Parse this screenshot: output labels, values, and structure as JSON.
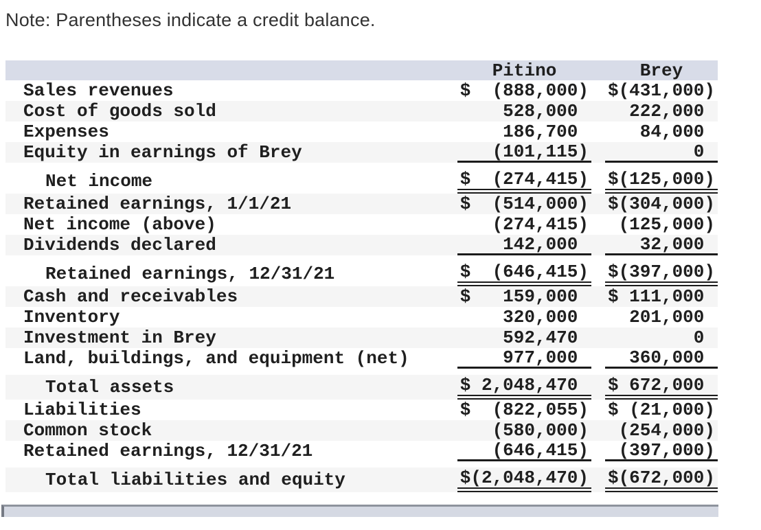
{
  "note": "Note: Parentheses indicate a credit balance.",
  "colors": {
    "header_bg": "#d8dce8",
    "row_shade_bg": "#f5f5f5",
    "rule_line": "#1b1b1b",
    "text": "#1f1f1f",
    "note_text": "#333333",
    "scrollbar_track": "#d5d9e3",
    "scrollbar_border": "#8e939d",
    "scrollbar_edge": "#757a84"
  },
  "table": {
    "columns": [
      "Pitino",
      "Brey"
    ],
    "rows": [
      {
        "label": "Sales revenues",
        "pitino": "$  (888,000)",
        "brey": "$(431,000)"
      },
      {
        "label": "Cost of goods sold",
        "pitino": "528,000 ",
        "brey": "222,000 "
      },
      {
        "label": "Expenses",
        "pitino": "186,700 ",
        "brey": "84,000 "
      },
      {
        "label": "Equity in earnings of Brey",
        "pitino": "(101,115)",
        "brey": "0 "
      },
      {
        "label": "Net income",
        "pitino": "$  (274,415)",
        "brey": "$(125,000)"
      },
      {
        "label": "Retained earnings, 1/1/21",
        "pitino": "$  (514,000)",
        "brey": "$(304,000)"
      },
      {
        "label": "Net income (above)",
        "pitino": "(274,415)",
        "brey": "(125,000)"
      },
      {
        "label": "Dividends declared",
        "pitino": "142,000 ",
        "brey": "32,000 "
      },
      {
        "label": "Retained earnings, 12/31/21",
        "pitino": "$  (646,415)",
        "brey": "$(397,000)"
      },
      {
        "label": "Cash and receivables",
        "pitino": "$   159,000 ",
        "brey": "$ 111,000 "
      },
      {
        "label": "Inventory",
        "pitino": "320,000 ",
        "brey": "201,000 "
      },
      {
        "label": "Investment in Brey",
        "pitino": "592,470 ",
        "brey": "0 "
      },
      {
        "label": "Land, buildings, and equipment (net)",
        "pitino": "977,000 ",
        "brey": "360,000 "
      },
      {
        "label": "Total assets",
        "pitino": "$ 2,048,470 ",
        "brey": "$ 672,000 "
      },
      {
        "label": "Liabilities",
        "pitino": "$  (822,055)",
        "brey": "$ (21,000)"
      },
      {
        "label": "Common stock",
        "pitino": "(580,000)",
        "brey": "(254,000)"
      },
      {
        "label": "Retained earnings, 12/31/21",
        "pitino": "(646,415)",
        "brey": "(397,000)"
      },
      {
        "label": "Total liabilities and equity",
        "pitino": "$(2,048,470)",
        "brey": "$(672,000)"
      }
    ]
  }
}
